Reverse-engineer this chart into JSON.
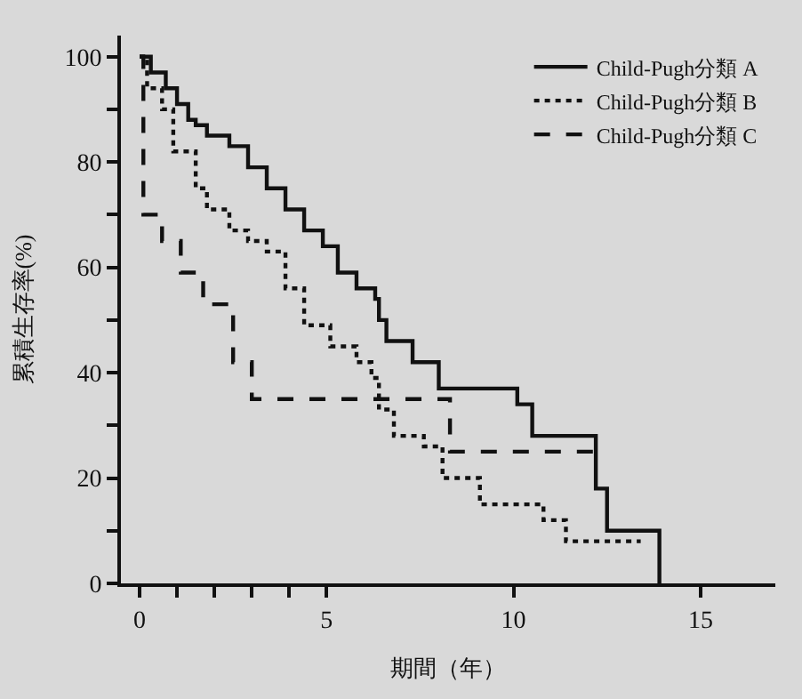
{
  "chart_data": {
    "type": "step",
    "xlabel": "期間（年）",
    "ylabel": "累積生存率(%)",
    "series": [
      {
        "name": "Child-Pugh分類 A",
        "color": "#111111",
        "line_style": "solid",
        "x": [
          0,
          0.3,
          0.7,
          1.0,
          1.3,
          1.5,
          1.8,
          2.4,
          2.9,
          3.4,
          3.9,
          4.4,
          4.9,
          5.3,
          5.8,
          6.3,
          6.4,
          6.6,
          7.3,
          8.0,
          10.1,
          10.5,
          12.2,
          12.5,
          13.9
        ],
        "values": [
          100,
          97,
          94,
          91,
          88,
          87,
          85,
          83,
          79,
          75,
          71,
          67,
          64,
          59,
          56,
          54,
          50,
          46,
          42,
          37,
          34,
          28,
          18,
          10,
          0
        ]
      },
      {
        "name": "Child-Pugh分類 B",
        "color": "#111111",
        "line_style": "dotted",
        "x": [
          0,
          0.2,
          0.6,
          0.9,
          1.5,
          1.8,
          2.4,
          2.9,
          3.4,
          3.9,
          4.4,
          5.1,
          5.8,
          6.2,
          6.4,
          6.8,
          7.6,
          8.1,
          9.1,
          10.8,
          11.4,
          13.4
        ],
        "values": [
          100,
          94,
          90,
          82,
          75,
          71,
          67,
          65,
          63,
          56,
          49,
          45,
          42,
          39,
          33,
          28,
          26,
          20,
          15,
          12,
          8,
          8
        ]
      },
      {
        "name": "Child-Pugh分類 C",
        "color": "#111111",
        "line_style": "dashed",
        "x": [
          0,
          0.1,
          0.6,
          1.1,
          1.7,
          2.5,
          3.0,
          8.3,
          12.2
        ],
        "values": [
          100,
          70,
          65,
          59,
          53,
          42,
          35,
          25,
          25
        ]
      }
    ],
    "xlim": [
      -0.5,
      17
    ],
    "ylim": [
      0,
      104
    ],
    "xticks": [
      0,
      {
        "value": 1,
        "label": null
      },
      {
        "value": 2,
        "label": null
      },
      {
        "value": 3,
        "label": null
      },
      {
        "value": 4,
        "label": null
      },
      5,
      10,
      15
    ],
    "yticks": [
      0,
      {
        "value": 10,
        "label": null
      },
      20,
      {
        "value": 30,
        "label": null
      },
      40,
      {
        "value": 50,
        "label": null
      },
      60,
      {
        "value": 70,
        "label": null
      },
      80,
      {
        "value": 90,
        "label": null
      },
      100
    ],
    "legend": "top right",
    "grid": false
  }
}
